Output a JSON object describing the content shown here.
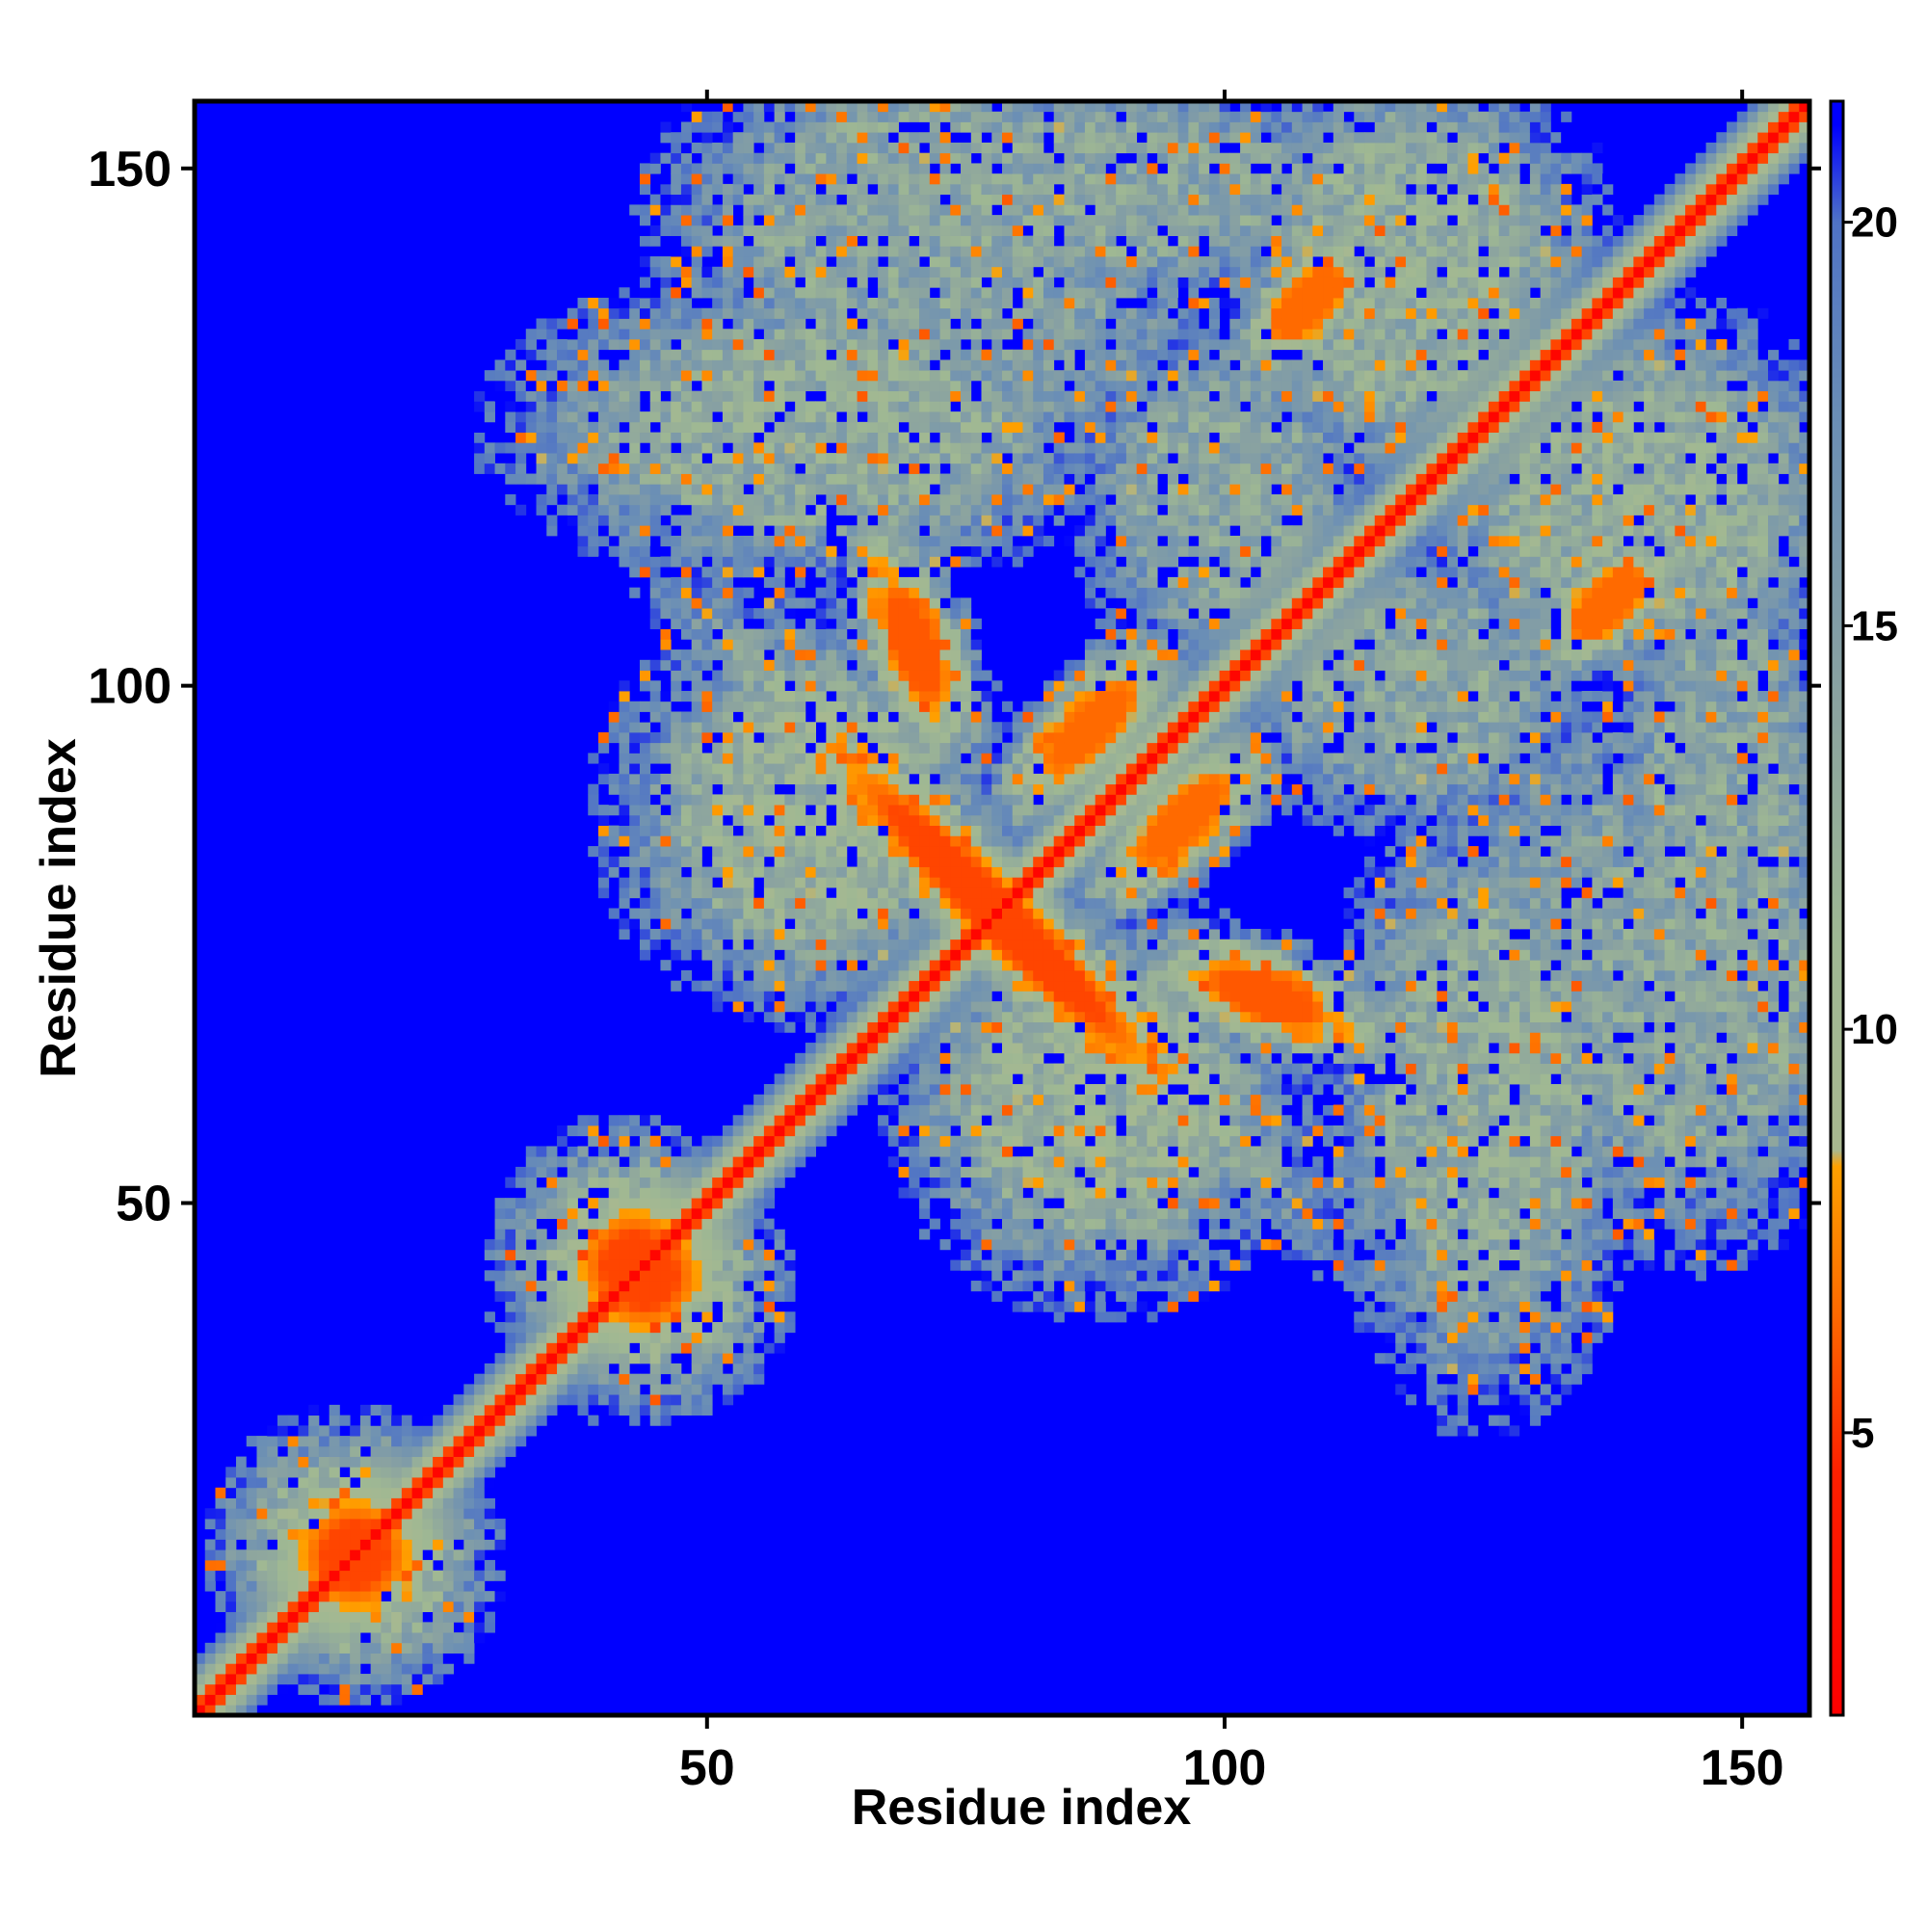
{
  "chart_data": {
    "type": "heatmap",
    "title": "",
    "xlabel": "Residue index",
    "ylabel": "Residue index",
    "xlim": [
      0.5,
      156.5
    ],
    "ylim": [
      0.5,
      156.5
    ],
    "x_ticks": [
      50,
      100,
      150
    ],
    "y_ticks": [
      50,
      100,
      150
    ],
    "colorbar": {
      "range": [
        1.5,
        21.5
      ],
      "ticks": [
        5,
        10,
        15,
        20
      ],
      "stops": [
        {
          "value": 1.5,
          "color": "#ff0000"
        },
        {
          "value": 4.5,
          "color": "#ff2000"
        },
        {
          "value": 6.5,
          "color": "#ff6a00"
        },
        {
          "value": 8.3,
          "color": "#ffa000"
        },
        {
          "value": 8.5,
          "color": "#a8b890"
        },
        {
          "value": 11,
          "color": "#9fb893"
        },
        {
          "value": 14,
          "color": "#8ba3a0"
        },
        {
          "value": 17.5,
          "color": "#6b8fb5"
        },
        {
          "value": 20,
          "color": "#4f73c6"
        },
        {
          "value": 21.2,
          "color": "#0000ff"
        },
        {
          "value": 21.5,
          "color": "#0000ff"
        }
      ]
    },
    "n_residues": 156,
    "background_value": 21.5,
    "diagonal_band": {
      "center_value": 2,
      "width_scale": 3.5
    },
    "features": [
      {
        "x": 16,
        "y": 16,
        "rx": 3,
        "ry": 3,
        "angle": 0,
        "value": 5.5,
        "spread": 4
      },
      {
        "x": 44,
        "y": 43,
        "rx": 3,
        "ry": 3,
        "angle": 0,
        "value": 5.5,
        "spread": 4
      },
      {
        "x": 78,
        "y": 78,
        "rx": 2,
        "ry": 14,
        "angle": 45,
        "value": 5.5,
        "spread": 6
      },
      {
        "x": 70,
        "y": 104,
        "rx": 2,
        "ry": 5,
        "angle": -20,
        "value": 6,
        "spread": 7
      },
      {
        "x": 104,
        "y": 70,
        "rx": 5,
        "ry": 2,
        "angle": -20,
        "value": 6,
        "spread": 7
      },
      {
        "x": 108,
        "y": 137,
        "rx": 2,
        "ry": 4,
        "angle": 45,
        "value": 6.5,
        "spread": 8
      },
      {
        "x": 137,
        "y": 108,
        "rx": 4,
        "ry": 2,
        "angle": 45,
        "value": 6.5,
        "spread": 8
      },
      {
        "x": 87,
        "y": 96,
        "rx": 2,
        "ry": 5,
        "angle": 45,
        "value": 6.5,
        "spread": 7
      },
      {
        "x": 96,
        "y": 87,
        "rx": 5,
        "ry": 2,
        "angle": 45,
        "value": 6.5,
        "spread": 7
      },
      {
        "x": 60,
        "y": 125,
        "rx": 16,
        "ry": 8,
        "angle": 0,
        "value": 13,
        "spread": 8
      },
      {
        "x": 125,
        "y": 60,
        "rx": 8,
        "ry": 16,
        "angle": 0,
        "value": 13,
        "spread": 8
      },
      {
        "x": 70,
        "y": 145,
        "rx": 14,
        "ry": 10,
        "angle": 0,
        "value": 14,
        "spread": 8
      },
      {
        "x": 145,
        "y": 70,
        "rx": 10,
        "ry": 14,
        "angle": 0,
        "value": 14,
        "spread": 8
      },
      {
        "x": 118,
        "y": 140,
        "rx": 10,
        "ry": 12,
        "angle": 0,
        "value": 13,
        "spread": 8
      },
      {
        "x": 140,
        "y": 118,
        "rx": 12,
        "ry": 10,
        "angle": 0,
        "value": 13,
        "spread": 8
      },
      {
        "x": 60,
        "y": 88,
        "rx": 10,
        "ry": 10,
        "angle": 0,
        "value": 12,
        "spread": 8
      },
      {
        "x": 88,
        "y": 60,
        "rx": 10,
        "ry": 10,
        "angle": 0,
        "value": 12,
        "spread": 8
      },
      {
        "x": 100,
        "y": 118,
        "rx": 8,
        "ry": 10,
        "angle": 0,
        "value": 14,
        "spread": 8
      },
      {
        "x": 118,
        "y": 100,
        "rx": 10,
        "ry": 8,
        "angle": 0,
        "value": 14,
        "spread": 8
      },
      {
        "x": 148,
        "y": 88,
        "rx": 6,
        "ry": 16,
        "angle": 0,
        "value": 14,
        "spread": 7
      },
      {
        "x": 88,
        "y": 148,
        "rx": 16,
        "ry": 6,
        "angle": 0,
        "value": 14,
        "spread": 7
      },
      {
        "x": 136,
        "y": 80,
        "rx": 8,
        "ry": 10,
        "angle": 0,
        "value": 15,
        "spread": 7
      },
      {
        "x": 80,
        "y": 136,
        "rx": 10,
        "ry": 8,
        "angle": 0,
        "value": 15,
        "spread": 7
      }
    ]
  }
}
